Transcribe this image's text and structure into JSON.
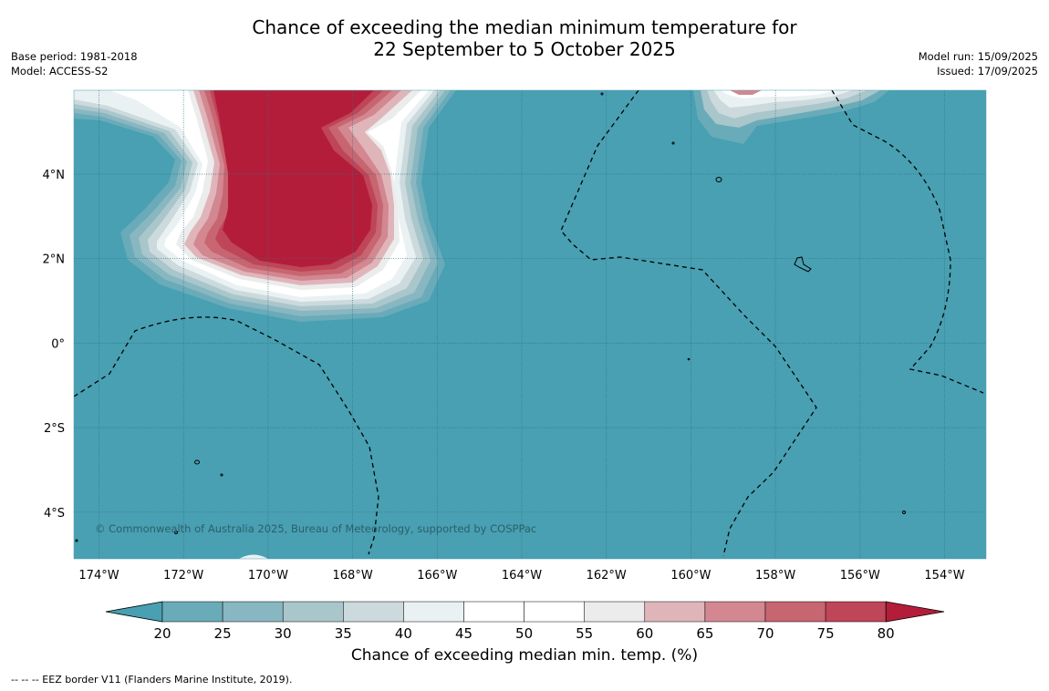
{
  "title": {
    "line1": "Chance of exceeding the median minimum temperature for",
    "line2": "22 September to 5 October 2025"
  },
  "meta_left": {
    "base_period": "Base period: 1981-2018",
    "model": "Model: ACCESS-S2"
  },
  "meta_right": {
    "model_run": "Model run: 15/09/2025",
    "issued": "Issued: 17/09/2025"
  },
  "map": {
    "x_ticks": [
      "174°W",
      "172°W",
      "170°W",
      "168°W",
      "166°W",
      "164°W",
      "162°W",
      "160°W",
      "158°W",
      "156°W",
      "154°W"
    ],
    "y_ticks": [
      "4°N",
      "2°N",
      "0°",
      "2°S",
      "4°S"
    ],
    "copyright": "© Commonwealth of Australia 2025, Bureau of Meteorology, supported by COSPPac",
    "colors": {
      "background_class": "#48a0b2",
      "high_class": "#b41d3a",
      "grid": "#2f6f7e"
    }
  },
  "colorbar": {
    "label": "Chance of exceeding median min. temp. (%)",
    "ticks": [
      "20",
      "25",
      "30",
      "35",
      "40",
      "45",
      "50",
      "55",
      "60",
      "65",
      "70",
      "75",
      "80"
    ],
    "colors": [
      "#48a0b2",
      "#6aabb9",
      "#88b7c2",
      "#a9c6cb",
      "#ccdadd",
      "#eaf1f2",
      "#ffffff",
      "#ffffff",
      "#ececed",
      "#e0b5ba",
      "#d38790",
      "#c76570",
      "#bf4558",
      "#b41d3a"
    ]
  },
  "legend_note": "--  --  -- EEZ border V11 (Flanders Marine Institute, 2019)."
}
